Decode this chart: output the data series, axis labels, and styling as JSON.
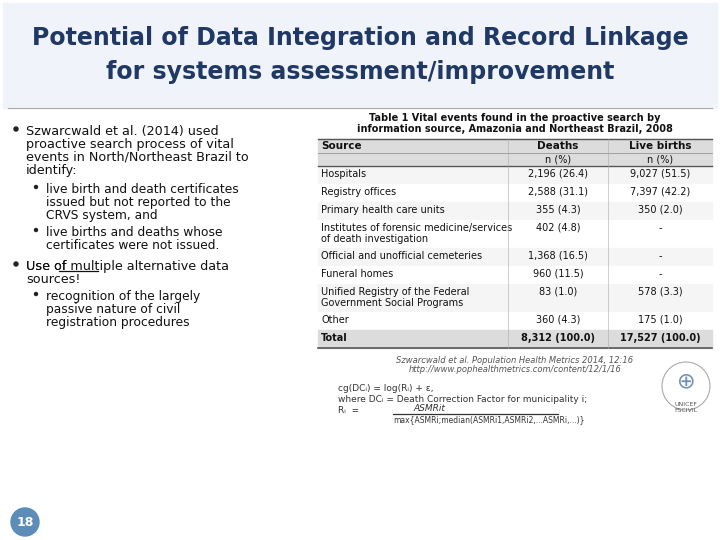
{
  "title_line1": "Potential of Data Integration and Record Linkage",
  "title_line2": "for systems assessment/improvement",
  "title_color": "#1F3864",
  "bg_color": "#FFFFFF",
  "slide_number": "18",
  "slide_number_bg": "#5B8DB8",
  "table_title_line1": "Table 1 Vital events found in the proactive search by",
  "table_title_line2": "information source, Amazonia and Northeast Brazil, 2008",
  "table_headers_row1": [
    "Source",
    "Deaths",
    "Live births"
  ],
  "table_headers_row2": [
    "",
    "n (%)",
    "n (%)"
  ],
  "table_rows": [
    [
      "Hospitals",
      "2,196 (26.4)",
      "9,027 (51.5)"
    ],
    [
      "Registry offices",
      "2,588 (31.1)",
      "7,397 (42.2)"
    ],
    [
      "Primary health care units",
      "355 (4.3)",
      "350 (2.0)"
    ],
    [
      "Institutes of forensic medicine/services\nof death investigation",
      "402 (4.8)",
      "-"
    ],
    [
      "Official and unofficial cemeteries",
      "1,368 (16.5)",
      "-"
    ],
    [
      "Funeral homes",
      "960 (11.5)",
      "-"
    ],
    [
      "Unified Registry of the Federal\nGovernment Social Programs",
      "83 (1.0)",
      "578 (3.3)"
    ],
    [
      "Other",
      "360 (4.3)",
      "175 (1.0)"
    ],
    [
      "Total",
      "8,312 (100.0)",
      "17,527 (100.0)"
    ]
  ],
  "footnote1": "Szwarcwald et al. Population Health Metrics 2014, 12:16",
  "footnote2": "http://www.pophealthmetrics.com/content/12/1/16",
  "bullet_points": [
    {
      "level": 1,
      "lines": [
        "Szwarcwald et al. (2014) used",
        "proactive search process of vital",
        "events in North/Northeast Brazil to",
        "identify:"
      ]
    },
    {
      "level": 2,
      "lines": [
        "live birth and death certificates",
        "issued but not reported to the",
        "CRVS system, and"
      ]
    },
    {
      "level": 2,
      "lines": [
        "live births and deaths whose",
        "certificates were not issued."
      ]
    },
    {
      "level": 1,
      "lines": [
        "Use of [u]multiple[/u] alternative data",
        "sources!"
      ]
    },
    {
      "level": 2,
      "lines": [
        "recognition of the largely",
        "passive nature of civil",
        "registration procedures"
      ]
    }
  ]
}
